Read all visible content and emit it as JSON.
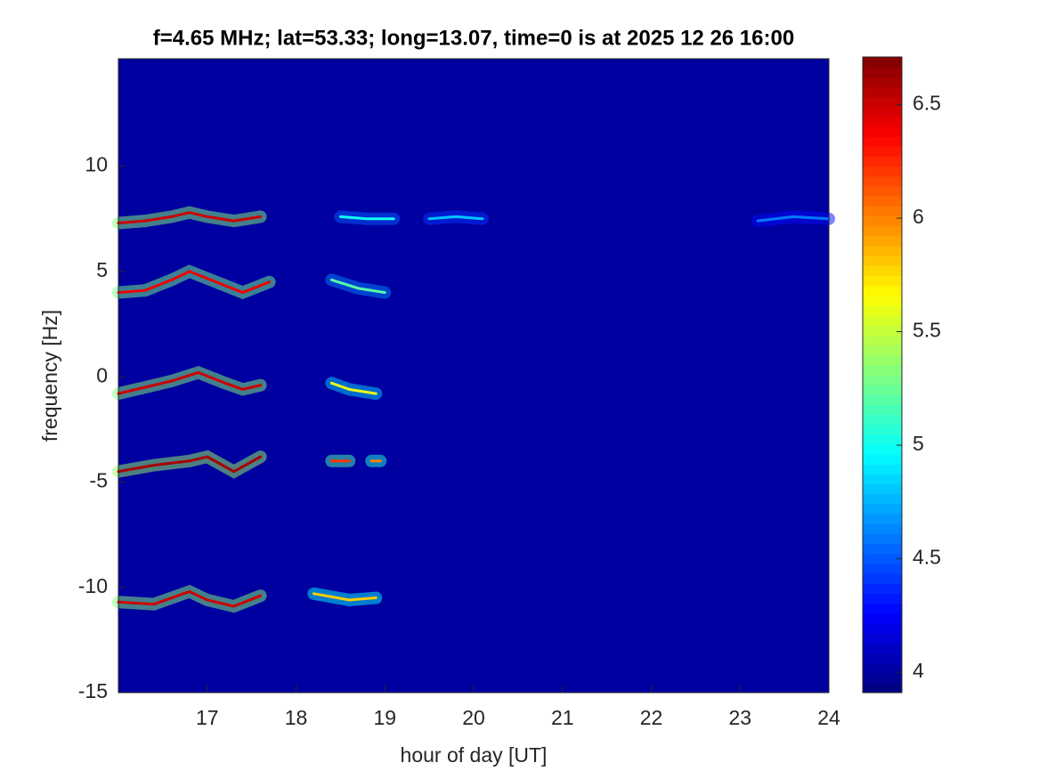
{
  "chart_data": {
    "type": "heatmap",
    "title": "f=4.65 MHz;  lat=53.33; long=13.07, time=0 is at 2025 12 26 16:00",
    "xlabel": "hour of day [UT]",
    "ylabel": "frequency [Hz]",
    "xlim": [
      16,
      24
    ],
    "xticks": [
      17,
      18,
      19,
      20,
      21,
      22,
      23,
      24
    ],
    "ylim": [
      -15,
      15.1
    ],
    "yticks": [
      -15,
      -10,
      -5,
      0,
      5,
      10
    ],
    "clim": [
      3.91,
      6.71
    ],
    "cticks": [
      4,
      4.5,
      5,
      5.5,
      6,
      6.5
    ],
    "colormap": "jet",
    "background_level": 4.0,
    "traces": [
      {
        "x": [
          16.0,
          16.3,
          16.6,
          16.8,
          17.0,
          17.3,
          17.6
        ],
        "y": [
          7.3,
          7.4,
          7.6,
          7.8,
          7.6,
          7.4,
          7.6
        ],
        "level": 6.5
      },
      {
        "x": [
          18.5,
          18.8,
          19.1
        ],
        "y": [
          7.6,
          7.5,
          7.5
        ],
        "level": 5.0
      },
      {
        "x": [
          19.5,
          19.8,
          20.1
        ],
        "y": [
          7.5,
          7.6,
          7.5
        ],
        "level": 4.8
      },
      {
        "x": [
          23.2,
          23.6,
          24.0
        ],
        "y": [
          7.4,
          7.6,
          7.5
        ],
        "level": 4.6
      },
      {
        "x": [
          16.0,
          16.3,
          16.6,
          16.8,
          17.1,
          17.4,
          17.7
        ],
        "y": [
          4.0,
          4.1,
          4.6,
          5.0,
          4.5,
          4.0,
          4.5
        ],
        "level": 6.4
      },
      {
        "x": [
          18.4,
          18.7,
          19.0
        ],
        "y": [
          4.6,
          4.2,
          4.0
        ],
        "level": 5.2
      },
      {
        "x": [
          16.0,
          16.3,
          16.6,
          16.9,
          17.2,
          17.4,
          17.6
        ],
        "y": [
          -0.8,
          -0.5,
          -0.2,
          0.2,
          -0.3,
          -0.6,
          -0.4
        ],
        "level": 6.5
      },
      {
        "x": [
          18.4,
          18.6,
          18.9
        ],
        "y": [
          -0.3,
          -0.6,
          -0.8
        ],
        "level": 5.6
      },
      {
        "x": [
          16.0,
          16.4,
          16.8,
          17.0,
          17.3,
          17.6
        ],
        "y": [
          -4.5,
          -4.2,
          -4.0,
          -3.8,
          -4.5,
          -3.8
        ],
        "level": 6.6
      },
      {
        "x": [
          18.4,
          18.6
        ],
        "y": [
          -4.0,
          -4.0
        ],
        "level": 6.2
      },
      {
        "x": [
          18.85,
          18.95
        ],
        "y": [
          -4.0,
          -4.0
        ],
        "level": 6.0
      },
      {
        "x": [
          16.0,
          16.4,
          16.8,
          17.0,
          17.3,
          17.6
        ],
        "y": [
          -10.7,
          -10.8,
          -10.2,
          -10.6,
          -10.9,
          -10.4
        ],
        "level": 6.5
      },
      {
        "x": [
          18.2,
          18.6,
          18.9
        ],
        "y": [
          -10.3,
          -10.6,
          -10.5
        ],
        "level": 5.8
      }
    ]
  }
}
